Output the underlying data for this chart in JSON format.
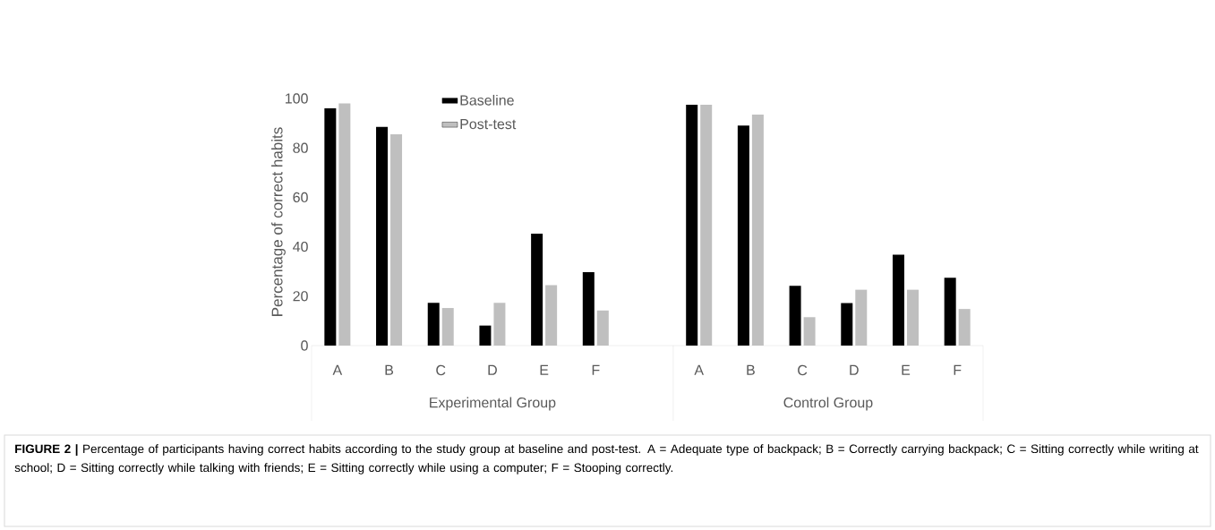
{
  "chart_data": {
    "type": "bar",
    "ylabel": "Percentage of correct habits",
    "categories": [
      "A",
      "B",
      "C",
      "D",
      "E",
      "F",
      null,
      "A",
      "B",
      "C",
      "D",
      "E",
      "F"
    ],
    "series": [
      {
        "name": "Baseline",
        "color": "#000000",
        "values": [
          96,
          88.5,
          17.3,
          8.1,
          45.3,
          29.7,
          null,
          97.5,
          89,
          24.2,
          17.2,
          36.8,
          27.4
        ]
      },
      {
        "name": "Post-test",
        "color": "#bfbfbf",
        "values": [
          98,
          85.5,
          15.2,
          17.3,
          24.5,
          14.2,
          null,
          97.5,
          93.5,
          11.5,
          22.6,
          22.6,
          14.8
        ]
      }
    ],
    "ylim": [
      0,
      100
    ],
    "yticks": [
      0,
      20,
      40,
      60,
      80,
      100
    ],
    "grid": false,
    "legend": "top",
    "annotations": [
      "Experimental Group",
      "Control Group",
      "**FIGURE 2 |** Percentage of participants having correct habits according to the study group at baseline and post-test. A = Adequate type of backpack; B = Correctly carrying backpack; C = Sitting correctly while writing at school; D = Sitting correctly while talking with friends; E = Sitting correctly while using a computer; F = Stooping correctly."
    ]
  }
}
